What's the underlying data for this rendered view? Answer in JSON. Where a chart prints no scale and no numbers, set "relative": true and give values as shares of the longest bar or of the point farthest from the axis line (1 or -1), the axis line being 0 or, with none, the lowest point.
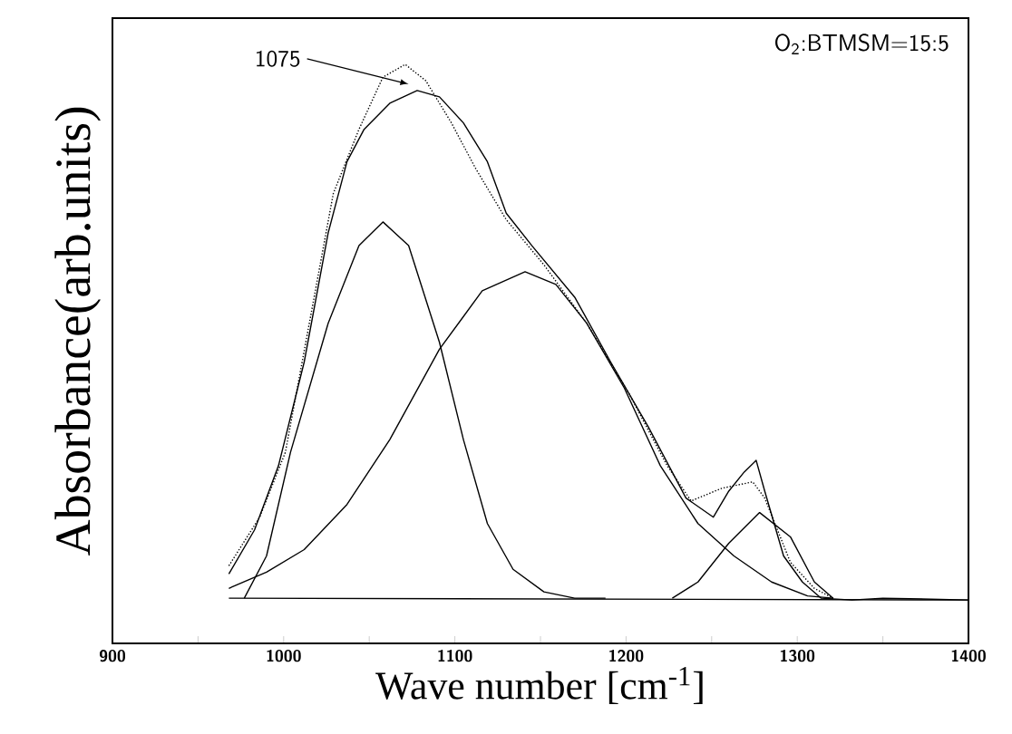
{
  "chart_data": {
    "type": "line",
    "relative": true,
    "xlabel": "Wave number [cm$^{-1}$]",
    "ylabel": "Absorbance(arb.units)",
    "annotations": [
      {
        "text": "1075",
        "x": 1073,
        "y": 0.966
      },
      "O$_{2}$:BTMSM=15:5"
    ],
    "xlim": [
      900,
      1400
    ],
    "xticks": [
      900,
      {
        "value": 950,
        "label": null
      },
      1000,
      {
        "value": 1050,
        "label": null
      },
      1100,
      {
        "value": 1150,
        "label": null
      },
      1200,
      {
        "value": 1250,
        "label": null
      },
      1300,
      {
        "value": 1350,
        "label": null
      },
      1400
    ],
    "tick_labels": "x",
    "grid": false,
    "marker": "none",
    "series": [
      {
        "color": "#000000",
        "line_style": "solid",
        "x": [
          968,
          983,
          997,
          1012,
          1026,
          1037,
          1047,
          1062,
          1078,
          1091,
          1105,
          1119,
          1130,
          1145,
          1170,
          1191,
          1213,
          1235,
          1251,
          1260,
          1269,
          1276,
          1281,
          1292,
          1303,
          1314,
          1332,
          1350,
          1400
        ],
        "values": [
          0.12,
          0.196,
          0.307,
          0.486,
          0.709,
          0.832,
          0.888,
          0.933,
          0.955,
          0.944,
          0.899,
          0.832,
          0.743,
          0.687,
          0.598,
          0.486,
          0.374,
          0.251,
          0.218,
          0.263,
          0.296,
          0.316,
          0.263,
          0.151,
          0.106,
          0.078,
          0.075,
          0.078,
          0.075
        ]
      },
      {
        "color": "#000000",
        "line_style": "dotted",
        "x": [
          968,
          986,
          1001,
          1015,
          1029,
          1044,
          1058,
          1071,
          1083,
          1098,
          1112,
          1130,
          1152,
          1177,
          1202,
          1224,
          1238,
          1256,
          1274,
          1281,
          1296,
          1310,
          1321
        ],
        "values": [
          0.134,
          0.218,
          0.33,
          0.553,
          0.777,
          0.888,
          0.978,
          1.0,
          0.972,
          0.899,
          0.821,
          0.732,
          0.654,
          0.553,
          0.43,
          0.307,
          0.246,
          0.268,
          0.279,
          0.251,
          0.14,
          0.095,
          0.078
        ]
      },
      {
        "color": "#000000",
        "line_style": "solid",
        "x": [
          977,
          990,
          1004,
          1026,
          1044,
          1058,
          1073,
          1091,
          1105,
          1119,
          1134,
          1152,
          1170,
          1188
        ],
        "values": [
          0.078,
          0.151,
          0.33,
          0.553,
          0.687,
          0.728,
          0.687,
          0.52,
          0.352,
          0.207,
          0.128,
          0.089,
          0.078,
          0.078
        ]
      },
      {
        "color": "#000000",
        "line_style": "solid",
        "x": [
          968,
          990,
          1012,
          1037,
          1062,
          1091,
          1116,
          1141,
          1159,
          1177,
          1199,
          1220,
          1242,
          1263,
          1285,
          1306,
          1321
        ],
        "values": [
          0.095,
          0.123,
          0.162,
          0.24,
          0.352,
          0.508,
          0.609,
          0.642,
          0.62,
          0.553,
          0.441,
          0.307,
          0.207,
          0.151,
          0.106,
          0.082,
          0.078
        ]
      },
      {
        "color": "#000000",
        "line_style": "solid",
        "x": [
          1227,
          1242,
          1260,
          1278,
          1296,
          1310,
          1321
        ],
        "values": [
          0.078,
          0.106,
          0.173,
          0.226,
          0.184,
          0.106,
          0.078
        ]
      },
      {
        "color": "#000000",
        "line_style": "solid",
        "x": [
          968,
          1400
        ],
        "values": [
          0.078,
          0.075
        ]
      }
    ]
  }
}
